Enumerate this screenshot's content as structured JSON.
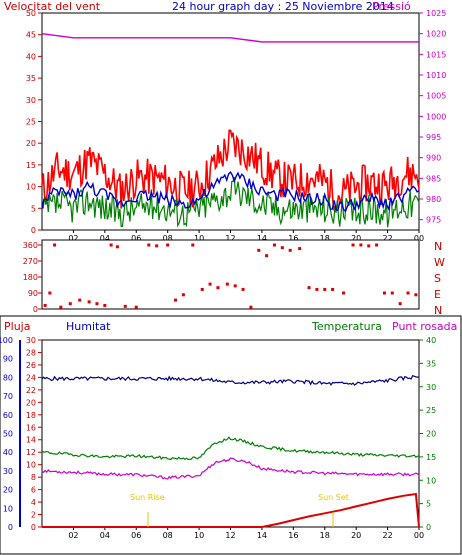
{
  "header": {
    "wind_label": "Velocitat del vent",
    "title": "24 hour graph day : 25 Noviembre 2014",
    "pressure_label": "Pressió"
  },
  "direction_labels": [
    "N",
    "W",
    "S",
    "E",
    "N"
  ],
  "lower_header": {
    "rain_label": "Pluja",
    "humidity_label": "Humitat",
    "temperature_label": "Temperatura",
    "dewpoint_label": "Punt rosada"
  },
  "annotations": {
    "sunrise": "Sun Rise",
    "sunset": "Sun Set"
  },
  "colors": {
    "wind": "#ff0000",
    "gust_avg": "#0000cc",
    "gust_green": "#008000",
    "pressure": "#cc00cc",
    "direction": "#dd0000",
    "humidity": "#000080",
    "temperature": "#008000",
    "dewpoint": "#cc00cc",
    "rain": "#dd0000",
    "axis_left": "#cc0000",
    "axis_pressure": "#cc00cc",
    "axis_humidity": "#0000cc",
    "axis_temperature": "#008000",
    "sun_marker": "#e6c600"
  },
  "chart_data": [
    {
      "type": "line",
      "title": "24 hour graph day : 25 Noviembre 2014",
      "x_ticks": [
        "02",
        "04",
        "06",
        "08",
        "10",
        "12",
        "14",
        "16",
        "18",
        "20",
        "22",
        "00"
      ],
      "y_left": {
        "label": "Velocitat del vent",
        "ticks": [
          0,
          5,
          10,
          15,
          20,
          25,
          30,
          35,
          40,
          45,
          50
        ],
        "range": [
          0,
          50
        ]
      },
      "y_right": {
        "label": "Pressió",
        "ticks": [
          975,
          980,
          985,
          990,
          995,
          1000,
          1005,
          1010,
          1015,
          1020,
          1025
        ],
        "range": [
          972.5,
          1025
        ]
      },
      "series": [
        {
          "name": "Velocitat del vent",
          "axis": "left",
          "x": [
            0,
            1,
            2,
            3,
            4,
            5,
            6,
            7,
            8,
            9,
            10,
            11,
            12,
            13,
            14,
            15,
            16,
            17,
            18,
            19,
            20,
            21,
            22,
            23,
            24
          ],
          "values": [
            9,
            14,
            13,
            16,
            13,
            9,
            12,
            12,
            11,
            9,
            10,
            15,
            20,
            18,
            15,
            12,
            11,
            12,
            11,
            8,
            10,
            11,
            10,
            13,
            13
          ]
        },
        {
          "name": "",
          "axis": "left",
          "x": [
            0,
            1,
            2,
            3,
            4,
            5,
            6,
            7,
            8,
            9,
            10,
            11,
            12,
            13,
            14,
            15,
            16,
            17,
            18,
            19,
            20,
            21,
            22,
            23,
            24
          ],
          "values": [
            6,
            9,
            8,
            10,
            8,
            6,
            8,
            8,
            7,
            6,
            7,
            10,
            13,
            11,
            9,
            8,
            8,
            7,
            7,
            5,
            6,
            7,
            6,
            8,
            9
          ]
        },
        {
          "name": "",
          "axis": "left",
          "x": [
            0,
            1,
            2,
            3,
            4,
            5,
            6,
            7,
            8,
            9,
            10,
            11,
            12,
            13,
            14,
            15,
            16,
            17,
            18,
            19,
            20,
            21,
            22,
            23,
            24
          ],
          "values": [
            4,
            6,
            5,
            7,
            5,
            4,
            5,
            6,
            5,
            4,
            5,
            7,
            9,
            8,
            6,
            5,
            5,
            5,
            5,
            4,
            4,
            5,
            4,
            6,
            6
          ]
        },
        {
          "name": "Pressió",
          "axis": "right",
          "x": [
            0,
            2,
            4,
            6,
            8,
            10,
            12,
            14,
            16,
            18,
            20,
            22,
            24
          ],
          "values": [
            1020,
            1019,
            1019,
            1019,
            1019,
            1019,
            1019,
            1018,
            1018,
            1018,
            1018,
            1018,
            1018
          ]
        }
      ]
    },
    {
      "type": "scatter",
      "x_ticks": [
        "02",
        "04",
        "06",
        "08",
        "10",
        "12",
        "14",
        "16",
        "18",
        "20",
        "22",
        "00"
      ],
      "y_left": {
        "ticks": [
          0,
          90,
          180,
          270,
          360
        ],
        "range": [
          0,
          360
        ]
      },
      "y_right_labels": [
        "N",
        "W",
        "S",
        "E",
        "N"
      ],
      "series": [
        {
          "name": "",
          "points": [
            [
              0.2,
              20
            ],
            [
              0.5,
              90
            ],
            [
              0.8,
              360
            ],
            [
              1.2,
              10
            ],
            [
              1.8,
              30
            ],
            [
              2.4,
              50
            ],
            [
              3.0,
              40
            ],
            [
              3.5,
              30
            ],
            [
              4.0,
              20
            ],
            [
              4.4,
              360
            ],
            [
              4.8,
              350
            ],
            [
              5.3,
              15
            ],
            [
              6.0,
              10
            ],
            [
              6.8,
              360
            ],
            [
              7.3,
              355
            ],
            [
              8.0,
              360
            ],
            [
              8.5,
              50
            ],
            [
              9.0,
              80
            ],
            [
              9.6,
              360
            ],
            [
              10.2,
              110
            ],
            [
              10.7,
              140
            ],
            [
              11.2,
              120
            ],
            [
              11.8,
              140
            ],
            [
              12.3,
              130
            ],
            [
              12.8,
              110
            ],
            [
              13.3,
              10
            ],
            [
              13.8,
              330
            ],
            [
              14.3,
              300
            ],
            [
              14.8,
              360
            ],
            [
              15.3,
              345
            ],
            [
              15.8,
              330
            ],
            [
              16.4,
              340
            ],
            [
              17.0,
              120
            ],
            [
              17.5,
              110
            ],
            [
              18.0,
              110
            ],
            [
              18.5,
              110
            ],
            [
              19.2,
              90
            ],
            [
              19.8,
              360
            ],
            [
              20.3,
              360
            ],
            [
              20.8,
              355
            ],
            [
              21.3,
              360
            ],
            [
              21.8,
              90
            ],
            [
              22.3,
              90
            ],
            [
              22.8,
              30
            ],
            [
              23.3,
              90
            ],
            [
              23.8,
              80
            ]
          ]
        }
      ]
    },
    {
      "type": "line",
      "x_ticks": [
        "02",
        "04",
        "06",
        "08",
        "10",
        "12",
        "14",
        "16",
        "18",
        "20",
        "22",
        "00"
      ],
      "y_rain": {
        "ticks": [
          0,
          10,
          20,
          30,
          40,
          50,
          60,
          70,
          80,
          90,
          100
        ],
        "range": [
          0,
          100
        ]
      },
      "y_left": {
        "ticks": [
          0,
          2,
          4,
          6,
          8,
          10,
          12,
          14,
          16,
          18,
          20,
          22,
          24,
          26,
          28,
          30
        ],
        "range": [
          0,
          30
        ]
      },
      "y_right": {
        "ticks": [
          0,
          5,
          10,
          15,
          20,
          25,
          30,
          35,
          40
        ],
        "range": [
          0,
          40
        ]
      },
      "series": [
        {
          "name": "Humitat",
          "axis": "left",
          "x": [
            0,
            2,
            4,
            6,
            8,
            10,
            12,
            14,
            16,
            18,
            20,
            22,
            24
          ],
          "values": [
            23.8,
            23.8,
            23.8,
            23.8,
            23.8,
            23.8,
            23.2,
            23.2,
            23.4,
            23.0,
            23.0,
            23.5,
            24.2
          ]
        },
        {
          "name": "Temperatura",
          "axis": "right",
          "x": [
            0,
            2,
            4,
            6,
            8,
            10,
            11,
            12,
            13,
            14,
            16,
            18,
            20,
            22,
            24
          ],
          "values": [
            16,
            15.5,
            15,
            15.2,
            14.7,
            14.7,
            18,
            19,
            18.2,
            17.2,
            16.3,
            16,
            15.5,
            15.3,
            15.2
          ]
        },
        {
          "name": "Punt rosada",
          "axis": "right",
          "x": [
            0,
            2,
            4,
            6,
            8,
            10,
            11,
            12,
            13,
            14,
            16,
            18,
            20,
            22,
            24
          ],
          "values": [
            12,
            11.7,
            11.3,
            11.2,
            10.5,
            11,
            13.8,
            14.5,
            14.0,
            12.5,
            11.8,
            11.5,
            11.3,
            11.3,
            11.2
          ]
        },
        {
          "name": "Pluja",
          "axis": "left",
          "x": [
            0,
            14,
            15,
            16,
            17,
            18,
            19,
            20,
            21,
            22,
            23,
            23.8,
            24
          ],
          "values": [
            0,
            0,
            0.5,
            1.1,
            1.7,
            2.2,
            2.7,
            3.3,
            3.9,
            4.5,
            5.0,
            5.3,
            0
          ]
        }
      ]
    }
  ]
}
